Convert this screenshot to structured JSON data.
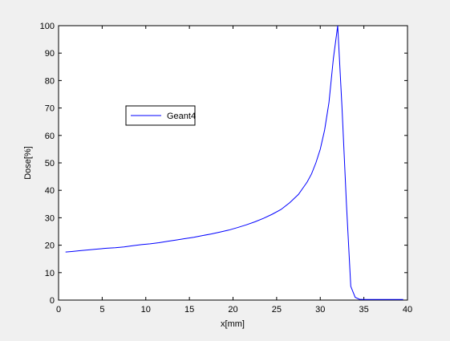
{
  "chart_data": {
    "type": "line",
    "title": "",
    "xlabel": "x[mm]",
    "ylabel": "Dose[%]",
    "xlim": [
      0,
      40
    ],
    "ylim": [
      0,
      100
    ],
    "xticks": [
      0,
      5,
      10,
      15,
      20,
      25,
      30,
      35,
      40
    ],
    "yticks": [
      0,
      10,
      20,
      30,
      40,
      50,
      60,
      70,
      80,
      90,
      100
    ],
    "xtick_labels": [
      "0",
      "5",
      "10",
      "15",
      "20",
      "25",
      "30",
      "35",
      "40"
    ],
    "ytick_labels": [
      "0",
      "10",
      "20",
      "30",
      "40",
      "50",
      "60",
      "70",
      "80",
      "90",
      "100"
    ],
    "grid": false,
    "legend_position": "upper-left",
    "series": [
      {
        "name": "Geant4",
        "color": "#0000ff",
        "x": [
          0.8,
          1.5,
          2.5,
          3.5,
          4.5,
          5.5,
          6.5,
          7.5,
          8.5,
          9.5,
          10.5,
          11.5,
          12.5,
          13.5,
          14.5,
          15.5,
          16.5,
          17.5,
          18.5,
          19.5,
          20.5,
          21.5,
          22.5,
          23.5,
          24.5,
          25.5,
          26.5,
          27.5,
          28.5,
          29.0,
          29.5,
          30.0,
          30.5,
          31.0,
          31.5,
          32.0,
          32.5,
          33.0,
          33.5,
          34.0,
          34.5,
          35.0,
          36.0,
          37.0,
          38.0,
          39.5
        ],
        "y": [
          17.5,
          17.7,
          18.0,
          18.3,
          18.6,
          18.9,
          19.1,
          19.4,
          19.8,
          20.2,
          20.5,
          20.9,
          21.4,
          21.9,
          22.4,
          22.9,
          23.5,
          24.1,
          24.8,
          25.5,
          26.4,
          27.4,
          28.5,
          29.8,
          31.3,
          33.0,
          35.5,
          38.5,
          43.0,
          46.0,
          50.0,
          55.0,
          62.0,
          72.0,
          88.0,
          100.0,
          70.0,
          35.0,
          5.0,
          1.0,
          0.3,
          0.2,
          0.2,
          0.2,
          0.2,
          0.2
        ]
      }
    ]
  }
}
